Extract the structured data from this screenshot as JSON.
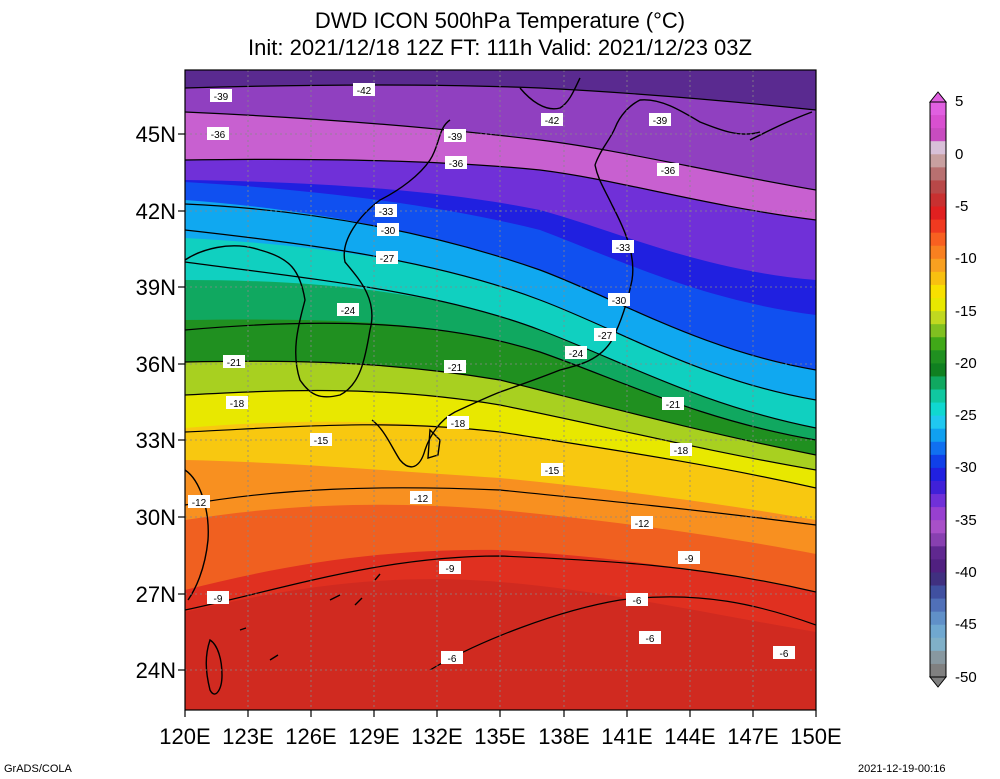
{
  "title_line1": "DWD ICON 500hPa Temperature (°C)",
  "title_line2": "Init: 2021/12/18 12Z  FT: 111h  Valid: 2021/12/23 03Z",
  "lat_labels": [
    "45N",
    "42N",
    "39N",
    "36N",
    "33N",
    "30N",
    "27N",
    "24N"
  ],
  "lon_labels": [
    "120E",
    "123E",
    "126E",
    "129E",
    "132E",
    "135E",
    "138E",
    "141E",
    "144E",
    "147E",
    "150E"
  ],
  "colorbar": {
    "labels": [
      "5",
      "0",
      "-5",
      "-10",
      "-15",
      "-20",
      "-25",
      "-30",
      "-35",
      "-40",
      "-45",
      "-50"
    ],
    "colors": [
      "#e060e0",
      "#d850d0",
      "#c84cc0",
      "#d8c0d8",
      "#c8a0a0",
      "#b87070",
      "#b84848",
      "#c83030",
      "#e02020",
      "#f03a20",
      "#f86020",
      "#f88020",
      "#f8a020",
      "#f8c010",
      "#f8e000",
      "#e8e800",
      "#c0d820",
      "#80c020",
      "#40a818",
      "#209020",
      "#108020",
      "#10a860",
      "#10c8a0",
      "#10d8d0",
      "#20c8f0",
      "#10a0f0",
      "#1070f0",
      "#1040e8",
      "#2020e0",
      "#4020d8",
      "#7030d8",
      "#9840d0",
      "#a850c8",
      "#8840b0",
      "#602890",
      "#502080",
      "#403080",
      "#4050a0",
      "#5070b8",
      "#6090c8",
      "#70a8d0",
      "#80b0c8",
      "#8898a0",
      "#808080"
    ]
  },
  "contour_labels": [
    "-42",
    "-39",
    "-36",
    "-33",
    "-30",
    "-27",
    "-24",
    "-21",
    "-18",
    "-15",
    "-12",
    "-9",
    "-6"
  ],
  "footer_left": "GrADS/COLA",
  "footer_right": "2021-12-19-00:16"
}
